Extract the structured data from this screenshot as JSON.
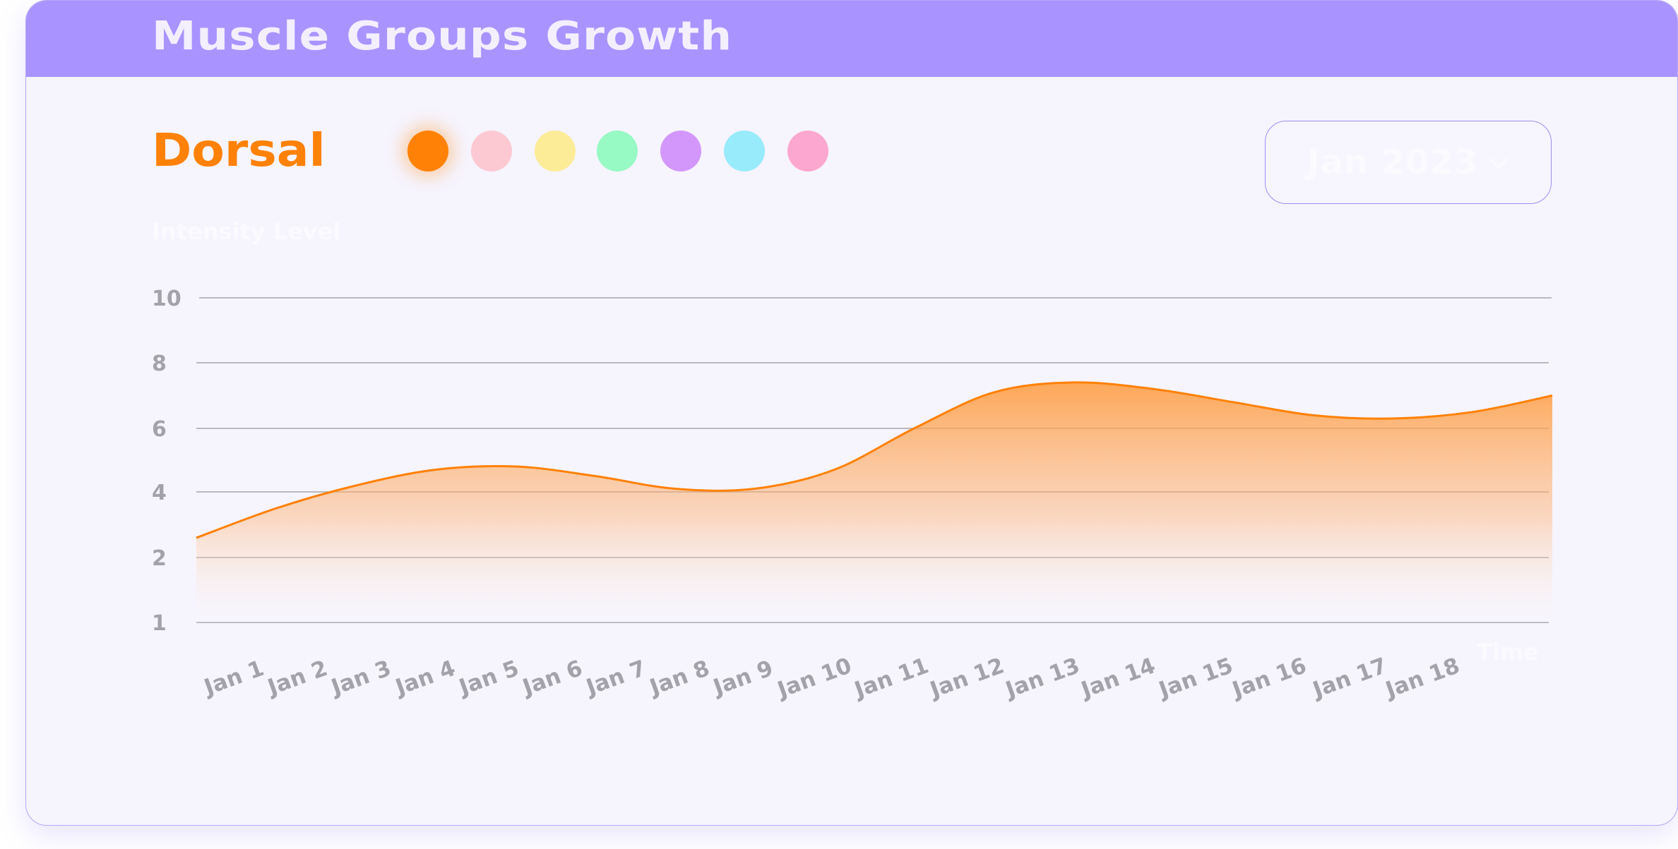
{
  "card": {
    "title": "Muscle Groups Growth",
    "muscle_label": "Dorsal",
    "month_select": "Jan 2023",
    "swatches": [
      "#ff8105",
      "#fcc9d3",
      "#fcec98",
      "#97f9c3",
      "#d397fb",
      "#98ebfb",
      "#fca7cf"
    ],
    "active_swatch": 0
  },
  "colors": {
    "header": "#a993ff",
    "accent": "#ff8105",
    "card_bg": "#f6f4fd",
    "tick": "#a3a1ab",
    "grid": "#a6a5ad"
  },
  "chart_data": {
    "type": "area",
    "xlabel": "Time",
    "ylabel": "Intensity Level",
    "categories": [
      "Jan 1",
      "Jan 2",
      "Jan 3",
      "Jan 4",
      "Jan 5",
      "Jan 6",
      "Jan 7",
      "Jan 8",
      "Jan 9",
      "Jan 10",
      "Jan 11",
      "Jan 12",
      "Jan 13",
      "Jan 14",
      "Jan 15",
      "Jan 16",
      "Jan 17",
      "Jan 18"
    ],
    "y_ticks": [
      1,
      2,
      4,
      6,
      8,
      10
    ],
    "series": [
      {
        "values": [
          2.6,
          3.5,
          4.2,
          4.7,
          4.8,
          4.5,
          4.1,
          4.1,
          4.7,
          6.0,
          7.1,
          7.4,
          7.2,
          6.8,
          6.4,
          6.3,
          6.5,
          7.0
        ]
      }
    ],
    "grid": true,
    "legend": false
  }
}
